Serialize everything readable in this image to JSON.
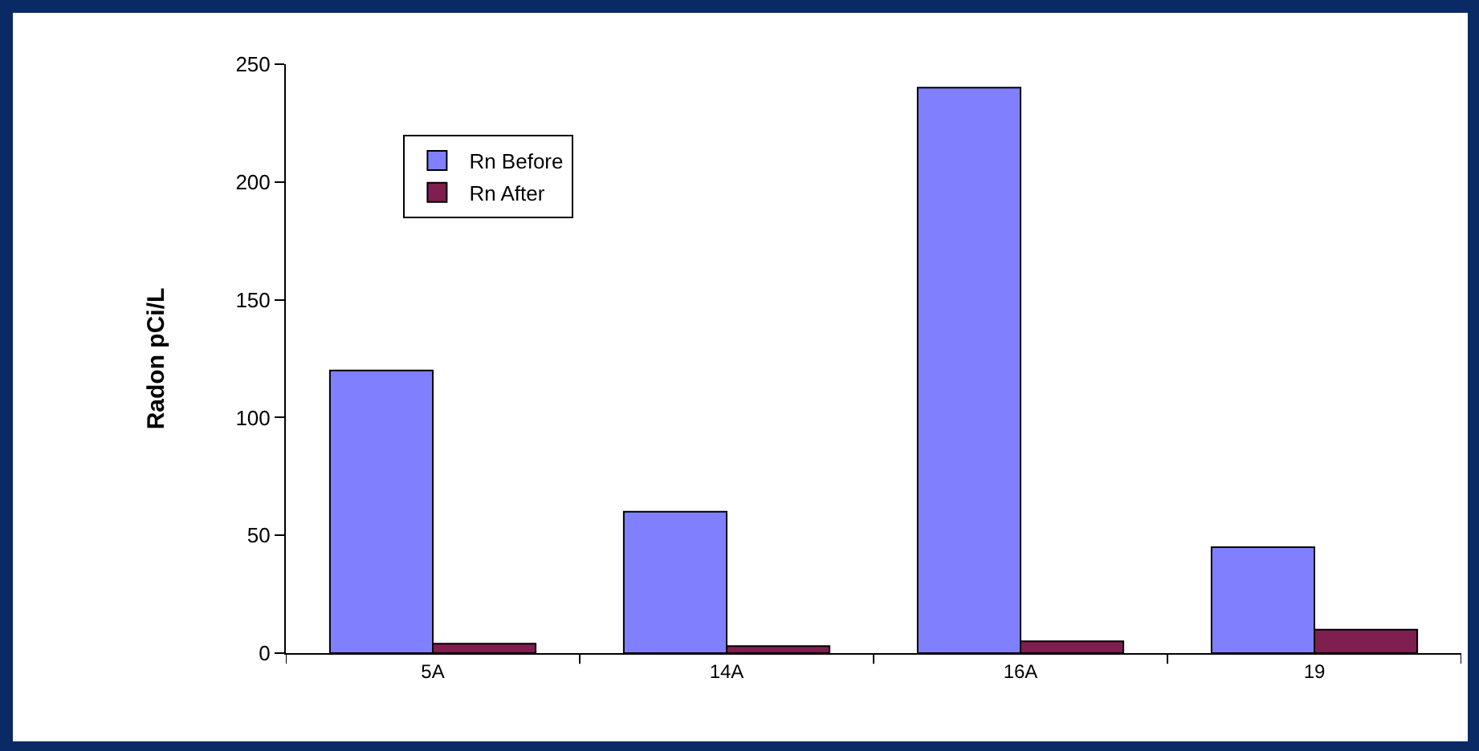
{
  "chart_data": {
    "type": "bar",
    "ylabel": "Radon pCi/L",
    "categories": [
      "5A",
      "14A",
      "16A",
      "19"
    ],
    "series": [
      {
        "name": "Rn Before",
        "color": "#8080ff",
        "values": [
          120,
          60,
          240,
          45
        ]
      },
      {
        "name": "Rn After",
        "color": "#7f1f4f",
        "values": [
          4,
          3,
          5,
          10
        ]
      }
    ],
    "ylim": [
      0,
      250
    ],
    "yticks": [
      0,
      50,
      100,
      150,
      200,
      250
    ],
    "grid": false,
    "legend": "top left"
  }
}
